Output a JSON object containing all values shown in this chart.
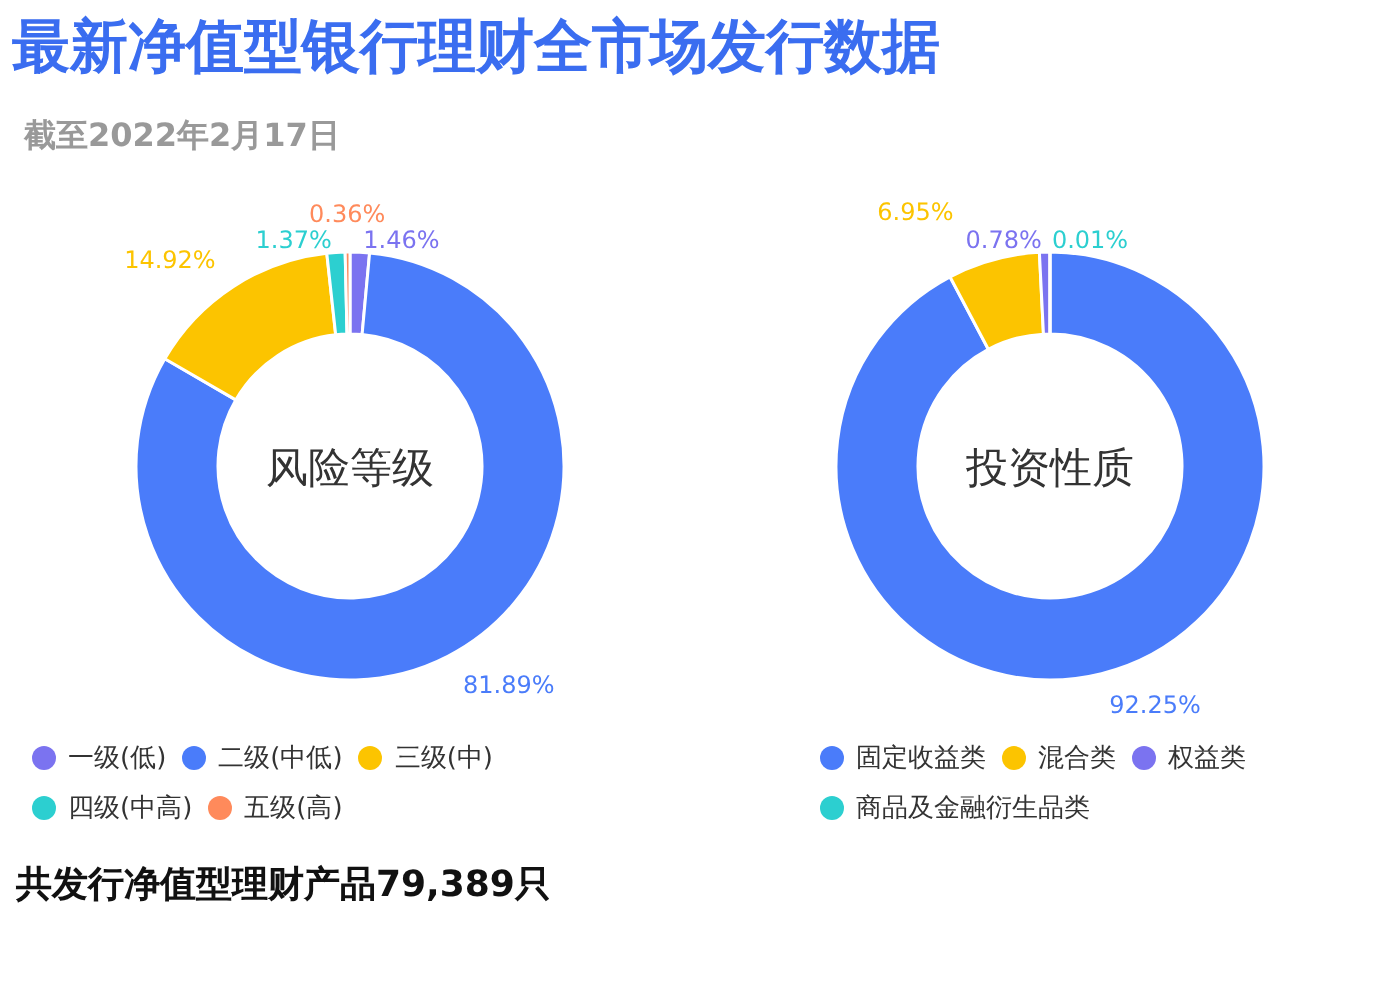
{
  "chart_data": [
    {
      "type": "donut",
      "title": "风险等级",
      "annotations": [
        "最新净值型银行理财全市场发行数据",
        "截至2022年2月17日",
        "共发行净值型理财产品79,389只"
      ],
      "categories": [
        "一级(低)",
        "二级(中低)",
        "三级(中)",
        "四级(中高)",
        "五级(高)"
      ],
      "values": [
        1.46,
        81.89,
        14.92,
        1.37,
        0.36
      ],
      "colors": [
        "#7b73f0",
        "#4a7cfa",
        "#fcc400",
        "#2ccfd0",
        "#ff8a5b"
      ],
      "value_labels": [
        "1.46%",
        "81.89%",
        "14.92%",
        "1.37%",
        "0.36%"
      ],
      "legend": "bottom"
    },
    {
      "type": "donut",
      "title": "投资性质",
      "categories": [
        "固定收益类",
        "混合类",
        "权益类",
        "商品及金融衍生品类"
      ],
      "values": [
        92.25,
        6.95,
        0.78,
        0.01
      ],
      "colors": [
        "#4a7cfa",
        "#fcc400",
        "#7b73f0",
        "#2ccfd0"
      ],
      "value_labels": [
        "92.25%",
        "6.95%",
        "0.78%",
        "0.01%"
      ],
      "legend": "bottom"
    }
  ]
}
